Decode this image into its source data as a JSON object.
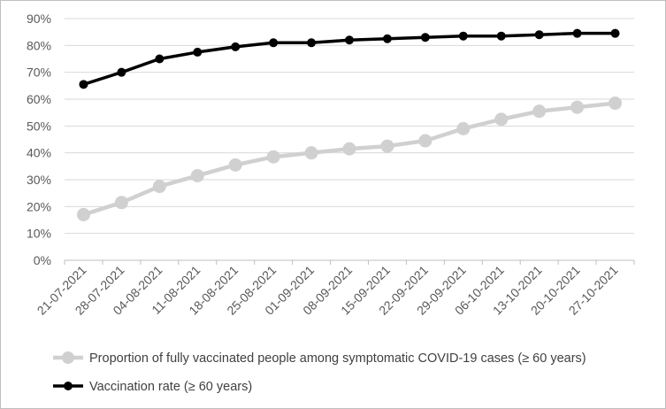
{
  "chart_data": {
    "type": "line",
    "title": "",
    "xlabel": "",
    "ylabel": "",
    "ylim": [
      0,
      90
    ],
    "ytick_step": 10,
    "y_unit": "%",
    "grid": "horizontal",
    "legend_position": "bottom",
    "categories": [
      "21-07-2021",
      "28-07-2021",
      "04-08-2021",
      "11-08-2021",
      "18-08-2021",
      "25-08-2021",
      "01-09-2021",
      "08-09-2021",
      "15-09-2021",
      "22-09-2021",
      "29-09-2021",
      "06-10-2021",
      "13-10-2021",
      "20-10-2021",
      "27-10-2021"
    ],
    "series": [
      {
        "name": "Proportion of fully vaccinated people among symptomatic COVID-19 cases (≥ 60 years)",
        "color": "#d0d0d0",
        "marker_size": "large",
        "values": [
          17,
          21.5,
          27.5,
          31.5,
          35.5,
          38.5,
          40,
          41.5,
          42.5,
          44.5,
          49,
          52.5,
          55.5,
          57,
          58.5
        ]
      },
      {
        "name": "Vaccination rate (≥ 60 years)",
        "color": "#000000",
        "marker_size": "small",
        "values": [
          65.5,
          70,
          75,
          77.5,
          79.5,
          81,
          81,
          82,
          82.5,
          83,
          83.5,
          83.5,
          84,
          84.5,
          84.5
        ]
      }
    ]
  }
}
